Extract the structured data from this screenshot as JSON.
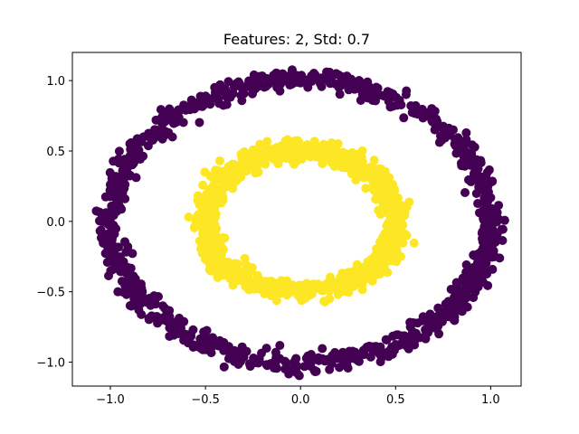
{
  "chart_data": {
    "type": "scatter",
    "title": "Features: 2, Std: 0.7",
    "xlabel": "",
    "ylabel": "",
    "xlim": [
      -1.2,
      1.16
    ],
    "ylim": [
      -1.17,
      1.2
    ],
    "xticks": [
      -1.0,
      -0.5,
      0.0,
      0.5,
      1.0
    ],
    "xtick_labels": [
      "−1.0",
      "−0.5",
      "0.0",
      "0.5",
      "1.0"
    ],
    "yticks": [
      -1.0,
      -0.5,
      0.0,
      0.5,
      1.0
    ],
    "ytick_labels": [
      "−1.0",
      "−0.5",
      "0.0",
      "0.5",
      "1.0"
    ],
    "grid": false,
    "legend": "none",
    "colormap": "viridis",
    "series": [
      {
        "class": 0,
        "color": "#440154",
        "shape": "ring",
        "center": [
          0.0,
          0.0
        ],
        "radius": 1.0,
        "spread": 0.035,
        "point_count": 1000
      },
      {
        "class": 1,
        "color": "#fde725",
        "shape": "ring",
        "center": [
          0.0,
          0.0
        ],
        "radius": 0.5,
        "spread": 0.035,
        "point_count": 1000
      }
    ]
  }
}
